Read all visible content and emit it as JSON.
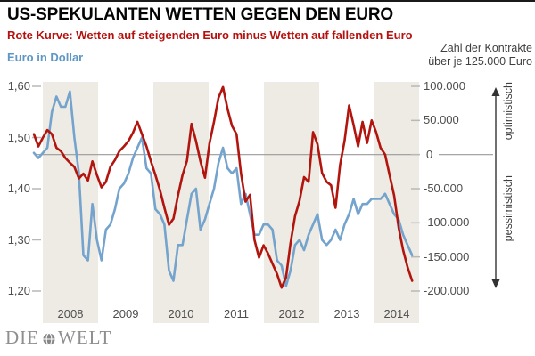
{
  "header": {
    "title": "US-SPEKULANTEN WETTEN GEGEN DEN EURO",
    "subtitle": "Rote Kurve: Wetten auf steigenden Euro minus Wetten auf fallenden Euro"
  },
  "chart_data": {
    "type": "line",
    "title": "US-SPEKULANTEN WETTEN GEGEN DEN EURO",
    "left_axis": {
      "label": "Euro in Dollar",
      "tick_labels": [
        "1,60",
        "1,50",
        "1,40",
        "1,30",
        "1,20"
      ],
      "range": [
        1.2,
        1.6
      ],
      "color": "#5e96c5"
    },
    "right_axis": {
      "label_line1": "Zahl der Kontrakte",
      "label_line2": "über je 125.000 Euro",
      "tick_labels": [
        "100.000",
        "50.000",
        "0",
        "-50.000",
        "-100.000",
        "-150.000",
        "-200.000"
      ],
      "range": [
        -200000,
        100000
      ]
    },
    "x_axis": {
      "years": [
        "2008",
        "2009",
        "2010",
        "2011",
        "2012",
        "2013",
        "2014"
      ],
      "shaded_years": [
        "2008",
        "2010",
        "2012",
        "2014"
      ]
    },
    "grid": "zero line only",
    "legend_position": "none (colors explained in subtitle and axis titles)",
    "annotations": {
      "up": "optimistisch",
      "down": "pessimistisch"
    },
    "series_start": "2007-11",
    "series_step_months": 1,
    "series": [
      {
        "name": "Euro in Dollar",
        "axis": "left",
        "color": "#74a3cd",
        "values": [
          1.47,
          1.46,
          1.47,
          1.48,
          1.55,
          1.58,
          1.56,
          1.56,
          1.59,
          1.5,
          1.43,
          1.27,
          1.26,
          1.37,
          1.3,
          1.26,
          1.32,
          1.33,
          1.36,
          1.4,
          1.41,
          1.43,
          1.46,
          1.48,
          1.5,
          1.44,
          1.43,
          1.36,
          1.35,
          1.33,
          1.24,
          1.22,
          1.29,
          1.29,
          1.34,
          1.39,
          1.4,
          1.32,
          1.34,
          1.37,
          1.4,
          1.45,
          1.48,
          1.44,
          1.43,
          1.44,
          1.37,
          1.39,
          1.35,
          1.31,
          1.31,
          1.33,
          1.33,
          1.32,
          1.26,
          1.25,
          1.21,
          1.24,
          1.29,
          1.3,
          1.28,
          1.31,
          1.33,
          1.35,
          1.3,
          1.29,
          1.3,
          1.32,
          1.3,
          1.33,
          1.35,
          1.38,
          1.35,
          1.37,
          1.37,
          1.38,
          1.38,
          1.38,
          1.39,
          1.37,
          1.35,
          1.34,
          1.31,
          1.29,
          1.27
        ]
      },
      {
        "name": "Wetten auf steigenden Euro minus Wetten auf fallenden Euro (Netto-Kontrakte)",
        "axis": "right",
        "color": "#b2140e",
        "values": [
          30000,
          12000,
          25000,
          36000,
          30000,
          10000,
          5000,
          -5000,
          -12000,
          -18000,
          -35000,
          -28000,
          -38000,
          -10000,
          -30000,
          -48000,
          -40000,
          -18000,
          -8000,
          5000,
          12000,
          20000,
          32000,
          48000,
          30000,
          12000,
          -10000,
          -30000,
          -52000,
          -78000,
          -103000,
          -94000,
          -60000,
          -30000,
          -9000,
          45000,
          20000,
          -10000,
          -34000,
          16000,
          48000,
          83000,
          99000,
          67000,
          42000,
          30000,
          -28000,
          -69000,
          -59000,
          -125000,
          -151000,
          -133000,
          -145000,
          -160000,
          -175000,
          -195000,
          -180000,
          -130000,
          -90000,
          -68000,
          -33000,
          -40000,
          33000,
          15000,
          -27000,
          -40000,
          -45000,
          -78000,
          -15000,
          20000,
          72000,
          43000,
          12000,
          48000,
          17000,
          50000,
          33000,
          10000,
          0,
          -30000,
          -60000,
          -107000,
          -140000,
          -165000,
          -185000
        ]
      }
    ]
  },
  "footer": {
    "logo_part1": "DIE",
    "logo_part2": "WELT"
  },
  "palette": {
    "band": "#edebe3",
    "zero_line": "#9a9a9a",
    "tick_dash": "#b8b8b8",
    "arrow": "#333333",
    "title_red": "#b5120f",
    "blue": "#74a3cd",
    "red": "#b2140e"
  }
}
